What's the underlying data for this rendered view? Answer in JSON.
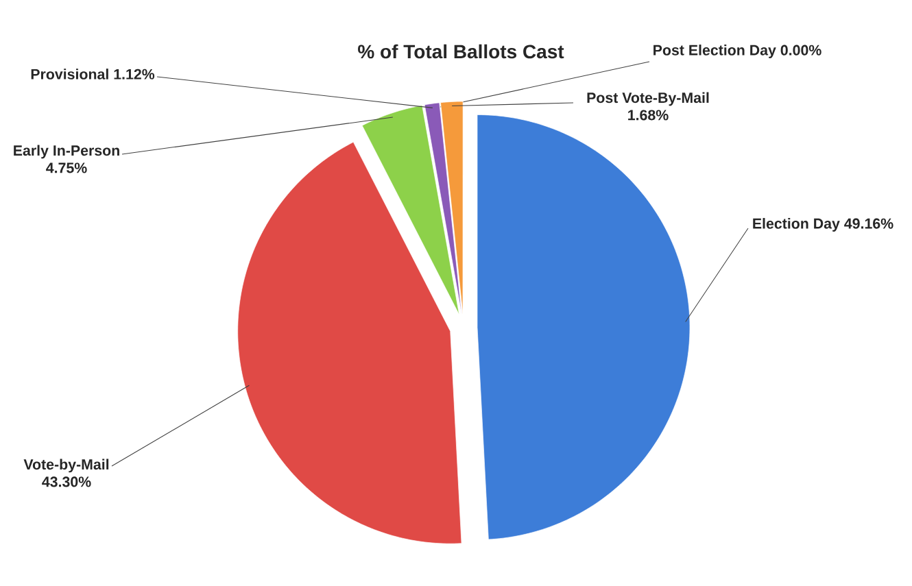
{
  "chart_data": {
    "type": "pie",
    "title": "% of Total Ballots Cast",
    "categories": [
      "Election Day",
      "Vote-by-Mail",
      "Early In-Person",
      "Provisional",
      "Post Election Day",
      "Post Vote-By-Mail"
    ],
    "values": [
      49.16,
      43.3,
      4.75,
      1.12,
      0.0,
      1.68
    ],
    "value_labels": [
      "49.16%",
      "43.30%",
      "4.75%",
      "1.12%",
      "0.00%",
      "1.68%"
    ],
    "colors": [
      "#3d7dd8",
      "#e04a46",
      "#8dd14a",
      "#8a5ab8",
      "#4bacc6",
      "#f59a3b"
    ]
  }
}
